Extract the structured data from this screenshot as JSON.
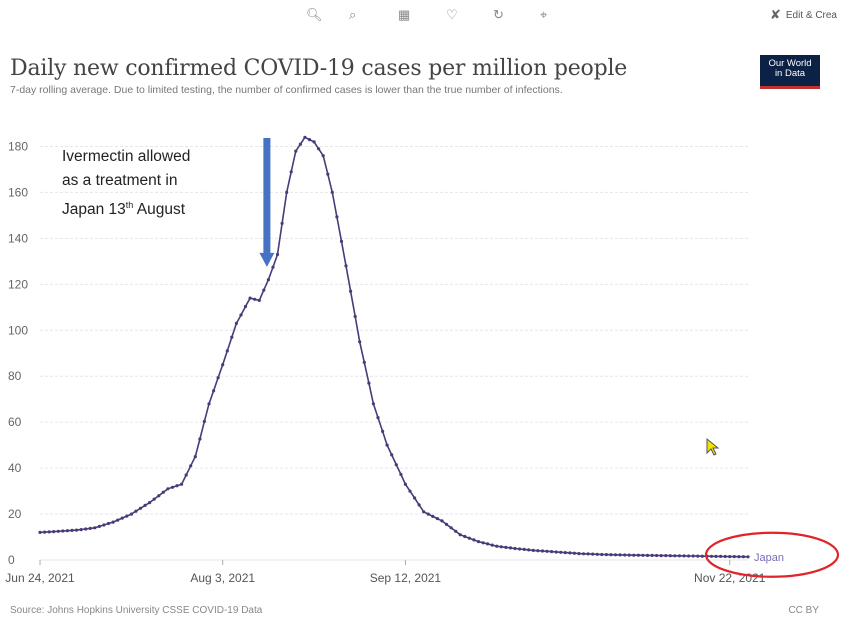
{
  "toolbar": {
    "icons": [
      "zoom-in-icon",
      "zoom-out-icon",
      "table-icon",
      "heart-icon",
      "refresh-icon",
      "crop-icon"
    ],
    "edit_label": "Edit & Crea"
  },
  "header": {
    "title": "Daily new confirmed COVID-19 cases per million people",
    "subtitle": "7-day rolling average. Due to limited testing, the number of confirmed cases is lower than the true number of infections.",
    "logo_line1": "Our World",
    "logo_line2": "in Data"
  },
  "annotation": {
    "line1": "Ivermectin allowed",
    "line2": "as a treatment in",
    "line3_prefix": "Japan 13",
    "line3_sup": "th",
    "line3_suffix": " August"
  },
  "footer": {
    "source": "Source: Johns Hopkins University CSSE COVID-19 Data",
    "license": "CC BY"
  },
  "colors": {
    "series": "#4b3a78",
    "arrow": "#4472c4",
    "highlight_ring": "#e0242a",
    "grid": "#e6e6e6",
    "cursor": "#f2e200"
  },
  "chart_data": {
    "type": "line",
    "x_start": "2021-06-24",
    "x_end": "2021-11-26",
    "yticks": [
      0,
      20,
      40,
      60,
      80,
      100,
      120,
      140,
      160,
      180
    ],
    "xticks": [
      "Jun 24, 2021",
      "Aug 3, 2021",
      "Sep 12, 2021",
      "Nov 22, 2021"
    ],
    "ylim": [
      0,
      185
    ],
    "grid": "horizontal",
    "series": [
      {
        "name": "Japan",
        "x": [
          "2021-06-24",
          "2021-06-28",
          "2021-07-02",
          "2021-07-06",
          "2021-07-10",
          "2021-07-14",
          "2021-07-18",
          "2021-07-22",
          "2021-07-25",
          "2021-07-28",
          "2021-07-31",
          "2021-08-03",
          "2021-08-06",
          "2021-08-09",
          "2021-08-11",
          "2021-08-13",
          "2021-08-15",
          "2021-08-17",
          "2021-08-19",
          "2021-08-21",
          "2021-08-23",
          "2021-08-25",
          "2021-08-27",
          "2021-08-30",
          "2021-09-02",
          "2021-09-05",
          "2021-09-08",
          "2021-09-12",
          "2021-09-16",
          "2021-09-20",
          "2021-09-24",
          "2021-09-28",
          "2021-10-02",
          "2021-10-06",
          "2021-10-10",
          "2021-10-15",
          "2021-10-20",
          "2021-10-25",
          "2021-11-01",
          "2021-11-08",
          "2021-11-15",
          "2021-11-22",
          "2021-11-26"
        ],
        "values": [
          12,
          12.5,
          13,
          14,
          16.5,
          20,
          25,
          31,
          33,
          45,
          68,
          85,
          103,
          114,
          113,
          122,
          133,
          160,
          178,
          184,
          182,
          176,
          160,
          128,
          95,
          68,
          50,
          33,
          21,
          17,
          11,
          8,
          6,
          5,
          4.2,
          3.5,
          2.8,
          2.4,
          2.1,
          1.9,
          1.7,
          1.5,
          1.4
        ]
      }
    ],
    "annotation_date": "2021-08-13"
  }
}
